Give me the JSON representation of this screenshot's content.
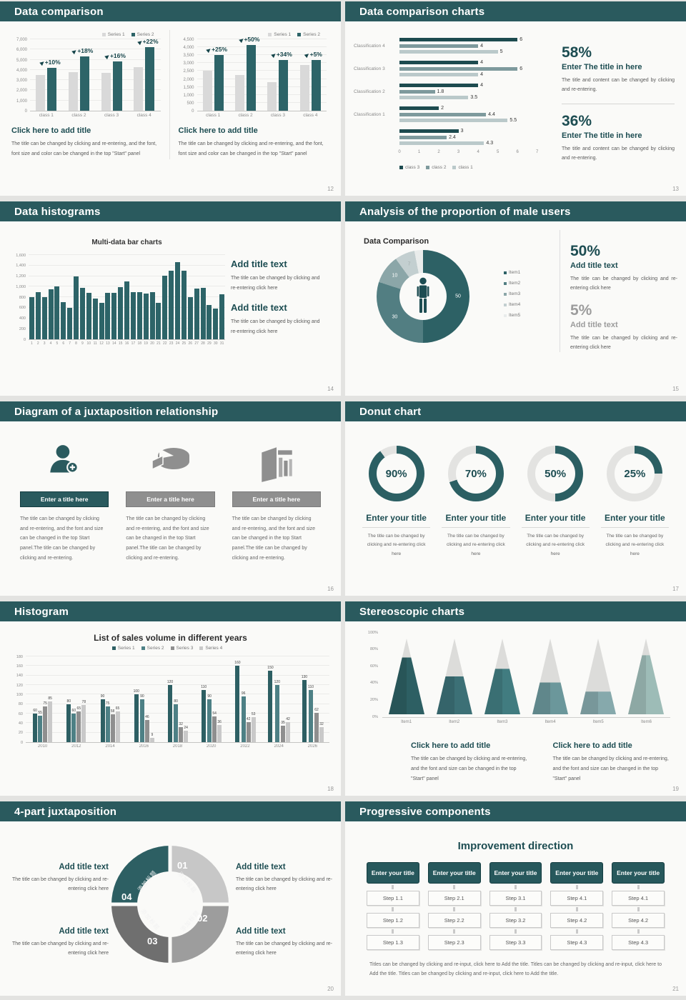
{
  "colors": {
    "header_teal": "#2a5a5e",
    "accent_teal": "#2d6468",
    "title_teal": "#1d4d52",
    "light_gray_bar": "#d9d9d9"
  },
  "slides": {
    "s12": {
      "header": "Data comparison",
      "page_no": "12",
      "left": {
        "title": "Click here to add title",
        "body": "The title can be changed by clicking and re-entering, and the font, font size and color can be changed in the top \"Start\" panel"
      },
      "right": {
        "title": "Click here to add title",
        "body": "The title can be changed by clicking and re-entering, and the font, font size and color can be changed in the top \"Start\" panel"
      }
    },
    "s13": {
      "header": "Data comparison charts",
      "page_no": "13",
      "stats": [
        {
          "value": "58%",
          "title": "Enter The title in here",
          "body": "The title and content can be changed by clicking and re-entering."
        },
        {
          "value": "36%",
          "title": "Enter The title in here",
          "body": "The title and content can be changed by clicking and re-entering."
        }
      ]
    },
    "s14": {
      "header": "Data histograms",
      "page_no": "14",
      "chart_title": "Multi-data bar charts",
      "blocks": [
        {
          "title": "Add title text",
          "body": "The title can be changed by clicking and re-entering click here"
        },
        {
          "title": "Add title text",
          "body": "The title can be changed by clicking and re-entering click here"
        }
      ]
    },
    "s15": {
      "header": "Analysis of the proportion of male users",
      "page_no": "15",
      "chart_title": "Data Comparison",
      "stats": [
        {
          "value": "50%",
          "title": "Add title text",
          "body": "The title can be changed by clicking and re-entering click here"
        },
        {
          "value": "5%",
          "title": "Add title text",
          "body": "The title can be changed by clicking and re-entering click here"
        }
      ]
    },
    "s16": {
      "header": "Diagram of a juxtaposition relationship",
      "page_no": "16",
      "columns": [
        {
          "icon": "nurse-icon",
          "title": "Enter a title here",
          "body": "The title can be changed by clicking and re-entering, and the font and size can be changed in the top Start panel.The title can be changed by clicking and re-entering."
        },
        {
          "icon": "pie-3d-icon",
          "title": "Enter a title here",
          "body": "The title can be changed by clicking and re-entering, and the font and size can be changed in the top Start panel.The title can be changed by clicking and re-entering."
        },
        {
          "icon": "building-icon",
          "title": "Enter a title here",
          "body": "The title can be changed by clicking and re-entering, and the font and size can be changed in the top Start panel.The title can be changed by clicking and re-entering."
        }
      ]
    },
    "s17": {
      "header": "Donut chart",
      "page_no": "17",
      "donuts": [
        {
          "title": "Enter your title",
          "body": "The title can be changed by clicking and re-entering click here"
        },
        {
          "title": "Enter your title",
          "body": "The title can be changed by clicking and re-entering click here"
        },
        {
          "title": "Enter your title",
          "body": "The title can be changed by clicking and re-entering click here"
        },
        {
          "title": "Enter your title",
          "body": "The title can be changed by clicking and re-entering click here"
        }
      ]
    },
    "s18": {
      "header": "Histogram",
      "page_no": "18",
      "chart_title": "List of sales volume in different years"
    },
    "s19": {
      "header": "Stereoscopic charts",
      "page_no": "19",
      "blocks": [
        {
          "title": "Click here to add title",
          "body": "The title can be changed by clicking and re-entering, and the font and size can be changed in the top \"Start\" panel"
        },
        {
          "title": "Click here to add title",
          "body": "The title can be changed by clicking and re-entering, and the font and size can be changed in the top \"Start\" panel"
        }
      ]
    },
    "s20": {
      "header": "4-part juxtaposition",
      "page_no": "20",
      "colors": [
        "#c7c7c7",
        "#9d9d9d",
        "#6f6f6f",
        "#2d5f63"
      ],
      "segments": [
        {
          "num": "01",
          "label": "添加标题"
        },
        {
          "num": "02",
          "label": "添加标题"
        },
        {
          "num": "03",
          "label": "添加标题"
        },
        {
          "num": "04",
          "label": "添加标题"
        }
      ],
      "blocks": [
        {
          "title": "Add title text",
          "body": "The title can be changed by clicking and re-entering click here"
        },
        {
          "title": "Add title text",
          "body": "The title can be changed by clicking and re-entering click here"
        },
        {
          "title": "Add title text",
          "body": "The title can be changed by clicking and re-entering click here"
        },
        {
          "title": "Add title text",
          "body": "The title can be changed by clicking and re-entering click here"
        }
      ]
    },
    "s21": {
      "header": "Progressive components",
      "page_no": "21",
      "subtitle": "Improvement direction",
      "columns": [
        {
          "title": "Enter your title",
          "steps": [
            "Step 1.1",
            "Step 1.2",
            "Step 1.3"
          ]
        },
        {
          "title": "Enter your title",
          "steps": [
            "Step 2.1",
            "Step 2.2",
            "Step 2.3"
          ]
        },
        {
          "title": "Enter your title",
          "steps": [
            "Step 3.1",
            "Step 3.2",
            "Step 3.3"
          ]
        },
        {
          "title": "Enter your title",
          "steps": [
            "Step 4.1",
            "Step 4.2",
            "Step 4.3"
          ]
        },
        {
          "title": "Enter your title",
          "steps": [
            "Step 4.1",
            "Step 4.2",
            "Step 4.3"
          ]
        }
      ],
      "footer": "Titles can be changed by clicking and re-input, click here to Add the title. Titles can be changed by clicking and re-input, click here to Add the title. Titles can be changed by clicking and re-input, click here to Add the title."
    }
  },
  "chart_data": [
    {
      "id": "s12_left",
      "type": "bar",
      "categories": [
        "class 1",
        "class 2",
        "class 3",
        "class 4"
      ],
      "series": [
        {
          "name": "Series 1",
          "color": "#d9d9d9",
          "values": [
            3500,
            3800,
            3700,
            4300
          ]
        },
        {
          "name": "Series 2",
          "color": "#2d6468",
          "values": [
            4200,
            5300,
            4800,
            6200
          ]
        }
      ],
      "annotations": [
        "+10%",
        "+18%",
        "+16%",
        "+22%"
      ],
      "ylim": [
        0,
        7000
      ],
      "ytick_step": 1000,
      "legend_position": "top-right",
      "grid": true
    },
    {
      "id": "s12_right",
      "type": "bar",
      "categories": [
        "class 1",
        "class 2",
        "class 3",
        "class 4"
      ],
      "series": [
        {
          "name": "Series 1",
          "color": "#d9d9d9",
          "values": [
            2500,
            2250,
            1800,
            2900
          ]
        },
        {
          "name": "Series 2",
          "color": "#2d6468",
          "values": [
            3500,
            4150,
            3200,
            3200
          ]
        }
      ],
      "annotations": [
        "+25%",
        "+50%",
        "+34%",
        "+5%"
      ],
      "ylim": [
        0,
        4500
      ],
      "ytick_step": 500,
      "legend_position": "top-right",
      "grid": true
    },
    {
      "id": "s13",
      "type": "bar",
      "orientation": "horizontal",
      "categories": [
        "Classification 4",
        "Classification 3",
        "Classification 2",
        "Classification 1",
        ""
      ],
      "series": [
        {
          "name": "class 3",
          "color": "#1d4b4f",
          "values": [
            6,
            4,
            4,
            2,
            3
          ]
        },
        {
          "name": "class 2",
          "color": "#7e9a9d",
          "values": [
            4,
            6,
            1.8,
            4.4,
            2.4
          ]
        },
        {
          "name": "class 1",
          "color": "#bac9ca",
          "values": [
            5,
            4,
            3.5,
            5.5,
            4.3
          ]
        }
      ],
      "xlim": [
        0,
        7
      ],
      "legend_position": "bottom-left",
      "value_labels": true
    },
    {
      "id": "s14",
      "type": "bar",
      "title": "Multi-data bar charts",
      "categories": [
        "1",
        "2",
        "3",
        "4",
        "5",
        "6",
        "7",
        "8",
        "9",
        "10",
        "11",
        "12",
        "13",
        "14",
        "15",
        "16",
        "17",
        "18",
        "19",
        "20",
        "21",
        "22",
        "23",
        "24",
        "25",
        "26",
        "27",
        "28",
        "29",
        "30",
        "31"
      ],
      "series": [
        {
          "name": "value",
          "color": "#2d6468",
          "values": [
            800,
            900,
            800,
            950,
            1010,
            700,
            600,
            1200,
            980,
            880,
            770,
            690,
            880,
            880,
            990,
            1100,
            890,
            890,
            870,
            890,
            690,
            1210,
            1300,
            1460,
            1300,
            800,
            960,
            970,
            650,
            580,
            860
          ]
        }
      ],
      "ylim": [
        0,
        1600
      ],
      "ytick_step": 200,
      "grid": true
    },
    {
      "id": "s15",
      "type": "pie",
      "title": "Data Comparison",
      "labels": [
        "Item1",
        "Item2",
        "Item3",
        "Item4",
        "Item5"
      ],
      "values": [
        50,
        30,
        10,
        7,
        3
      ],
      "colors": [
        "#2d6165",
        "#527e82",
        "#8ba6a8",
        "#c3cfd0",
        "#e9eceb"
      ],
      "center_icon": "male-icon",
      "legend_position": "right"
    },
    {
      "id": "s17",
      "type": "donut",
      "values": [
        90,
        70,
        50,
        25
      ],
      "color": "#2b5f63",
      "track_color": "#e3e3e1"
    },
    {
      "id": "s18",
      "type": "bar",
      "title": "List of sales volume in different years",
      "categories": [
        "2010",
        "2012",
        "2014",
        "2016",
        "2018",
        "2020",
        "2022",
        "2024",
        "2026"
      ],
      "series": [
        {
          "name": "Series 1",
          "color": "#2d5f63",
          "values": [
            60,
            80,
            90,
            100,
            120,
            110,
            160,
            150,
            130
          ]
        },
        {
          "name": "Series 2",
          "color": "#4d8085",
          "values": [
            55,
            60,
            75,
            90,
            80,
            90,
            96,
            120,
            110
          ]
        },
        {
          "name": "Series 3",
          "color": "#8f8f8f",
          "values": [
            75,
            65,
            58,
            46,
            32,
            54,
            42,
            35,
            62
          ]
        },
        {
          "name": "Series 4",
          "color": "#c9c9c9",
          "values": [
            85,
            78,
            65,
            9,
            24,
            36,
            53,
            42,
            32
          ]
        }
      ],
      "ylim": [
        0,
        180
      ],
      "ytick_step": 20,
      "legend_position": "top-center",
      "value_labels": true,
      "grid": true
    },
    {
      "id": "s19",
      "type": "pyramid",
      "categories": [
        "Item1",
        "Item2",
        "Item3",
        "Item4",
        "Item5",
        "Item6"
      ],
      "values_pct": [
        75,
        50,
        60,
        42,
        30,
        78
      ],
      "colors": [
        "#2d5f63",
        "#3c7076",
        "#417c80",
        "#6b979b",
        "#86a9ac",
        "#9dbcb7"
      ],
      "yticks": [
        "0%",
        "20%",
        "40%",
        "60%",
        "80%",
        "100%"
      ]
    }
  ]
}
